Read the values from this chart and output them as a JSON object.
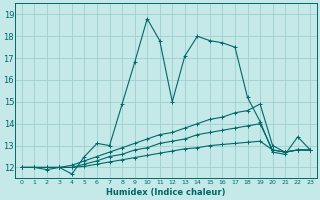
{
  "xlabel": "Humidex (Indice chaleur)",
  "xlim": [
    -0.5,
    23.5
  ],
  "ylim": [
    11.5,
    19.5
  ],
  "yticks": [
    12,
    13,
    14,
    15,
    16,
    17,
    18,
    19
  ],
  "xticks": [
    0,
    1,
    2,
    3,
    4,
    5,
    6,
    7,
    8,
    9,
    10,
    11,
    12,
    13,
    14,
    15,
    16,
    17,
    18,
    19,
    20,
    21,
    22,
    23
  ],
  "bg_color": "#c5e8e8",
  "grid_color": "#9fcfcf",
  "line_color": "#006868",
  "lines": [
    {
      "x": [
        0,
        1,
        2,
        3,
        4,
        5,
        6,
        7,
        8,
        9,
        10,
        11,
        12,
        13,
        14,
        15,
        16,
        17,
        18,
        19,
        20,
        21,
        22,
        23
      ],
      "y": [
        12,
        12,
        11.9,
        12,
        11.7,
        12.5,
        13.1,
        13.0,
        14.9,
        16.8,
        18.8,
        17.8,
        15.0,
        17.1,
        18.0,
        17.8,
        17.7,
        17.5,
        15.2,
        14.1,
        12.7,
        12.6,
        13.4,
        12.8
      ]
    },
    {
      "x": [
        0,
        1,
        2,
        3,
        4,
        5,
        6,
        7,
        8,
        9,
        10,
        11,
        12,
        13,
        14,
        15,
        16,
        17,
        18,
        19,
        20,
        21,
        22,
        23
      ],
      "y": [
        12,
        12,
        12,
        12,
        12.1,
        12.3,
        12.5,
        12.7,
        12.9,
        13.1,
        13.3,
        13.5,
        13.6,
        13.8,
        14.0,
        14.2,
        14.3,
        14.5,
        14.6,
        14.9,
        13.0,
        12.7,
        12.8,
        12.8
      ]
    },
    {
      "x": [
        0,
        1,
        2,
        3,
        4,
        5,
        6,
        7,
        8,
        9,
        10,
        11,
        12,
        13,
        14,
        15,
        16,
        17,
        18,
        19,
        20,
        21,
        22,
        23
      ],
      "y": [
        12,
        12,
        12,
        12,
        12.0,
        12.15,
        12.3,
        12.5,
        12.6,
        12.8,
        12.9,
        13.1,
        13.2,
        13.3,
        13.5,
        13.6,
        13.7,
        13.8,
        13.9,
        14.0,
        12.8,
        12.7,
        12.8,
        12.8
      ]
    },
    {
      "x": [
        0,
        1,
        2,
        3,
        4,
        5,
        6,
        7,
        8,
        9,
        10,
        11,
        12,
        13,
        14,
        15,
        16,
        17,
        18,
        19,
        20,
        21,
        22,
        23
      ],
      "y": [
        12,
        12,
        12,
        12,
        12.0,
        12.05,
        12.15,
        12.25,
        12.35,
        12.45,
        12.55,
        12.65,
        12.75,
        12.85,
        12.9,
        13.0,
        13.05,
        13.1,
        13.15,
        13.2,
        12.8,
        12.7,
        12.8,
        12.8
      ]
    }
  ]
}
